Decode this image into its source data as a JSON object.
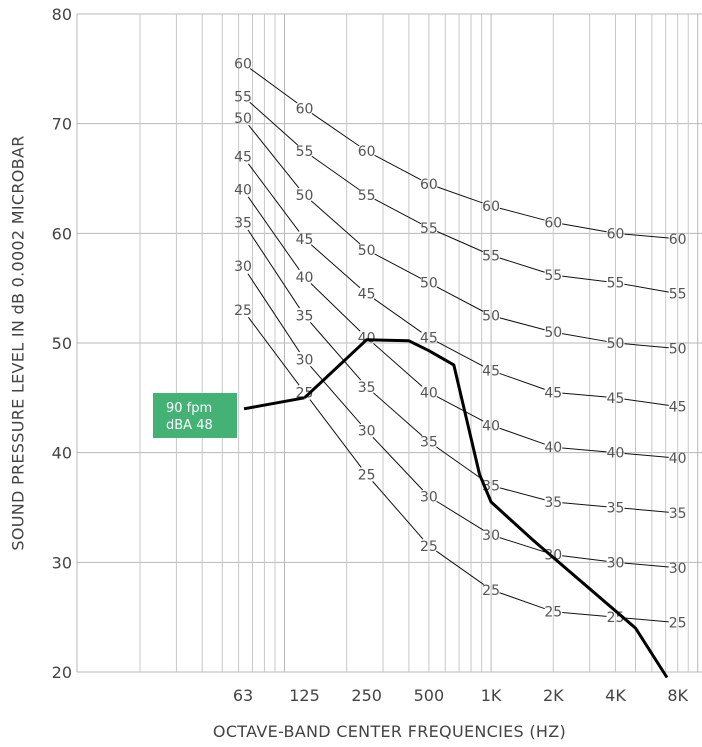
{
  "chart_data": {
    "type": "line",
    "title": "",
    "xlabel": "OCTAVE-BAND CENTER FREQUENCIES (HZ)",
    "ylabel": "SOUND PRESSURE LEVEL IN dB 0.0002 MICROBAR",
    "x_scale": "log2",
    "ylim": [
      20,
      80
    ],
    "yticks": [
      20,
      30,
      40,
      50,
      60,
      70,
      80
    ],
    "x_ticks": [
      {
        "value": 63,
        "label": "63"
      },
      {
        "value": 125,
        "label": "125"
      },
      {
        "value": 250,
        "label": "250"
      },
      {
        "value": 500,
        "label": "500"
      },
      {
        "value": 1000,
        "label": "1K"
      },
      {
        "value": 2000,
        "label": "2K"
      },
      {
        "value": 4000,
        "label": "4K"
      },
      {
        "value": 8000,
        "label": "8K"
      }
    ],
    "grid": true,
    "nc_x": [
      63,
      125,
      250,
      500,
      1000,
      2000,
      4000,
      8000
    ],
    "curves": [
      {
        "name": "60",
        "values": [
          75.5,
          71.4,
          67.5,
          64.5,
          62.5,
          61.0,
          60.0,
          59.5
        ]
      },
      {
        "name": "55",
        "values": [
          72.5,
          67.5,
          63.5,
          60.5,
          58.0,
          56.2,
          55.5,
          54.5
        ]
      },
      {
        "name": "50",
        "values": [
          70.5,
          63.5,
          58.5,
          55.5,
          52.5,
          51.0,
          50.0,
          49.5
        ]
      },
      {
        "name": "45",
        "values": [
          67.0,
          59.5,
          54.5,
          50.5,
          47.5,
          45.5,
          45.0,
          44.2
        ]
      },
      {
        "name": "40",
        "values": [
          64.0,
          56.0,
          50.5,
          45.5,
          42.5,
          40.5,
          40.0,
          39.5
        ]
      },
      {
        "name": "35",
        "values": [
          61.0,
          52.5,
          46.0,
          41.0,
          37.0,
          35.5,
          35.0,
          34.5
        ]
      },
      {
        "name": "30",
        "values": [
          57.0,
          48.5,
          42.0,
          36.0,
          32.5,
          30.7,
          30.0,
          29.5
        ]
      },
      {
        "name": "25",
        "values": [
          53.0,
          45.5,
          38.0,
          31.5,
          27.5,
          25.5,
          25.0,
          24.5
        ]
      }
    ],
    "measured": {
      "x": [
        125,
        250,
        400,
        500,
        660,
        880,
        1000,
        1600,
        5000,
        7100
      ],
      "y": [
        45.0,
        50.3,
        50.2,
        49.3,
        48.0,
        38.0,
        35.5,
        32.0,
        24.0,
        19.5
      ]
    },
    "callout": {
      "line1": "90  fpm",
      "line2": "dBA 48",
      "color": "#43b274"
    }
  }
}
